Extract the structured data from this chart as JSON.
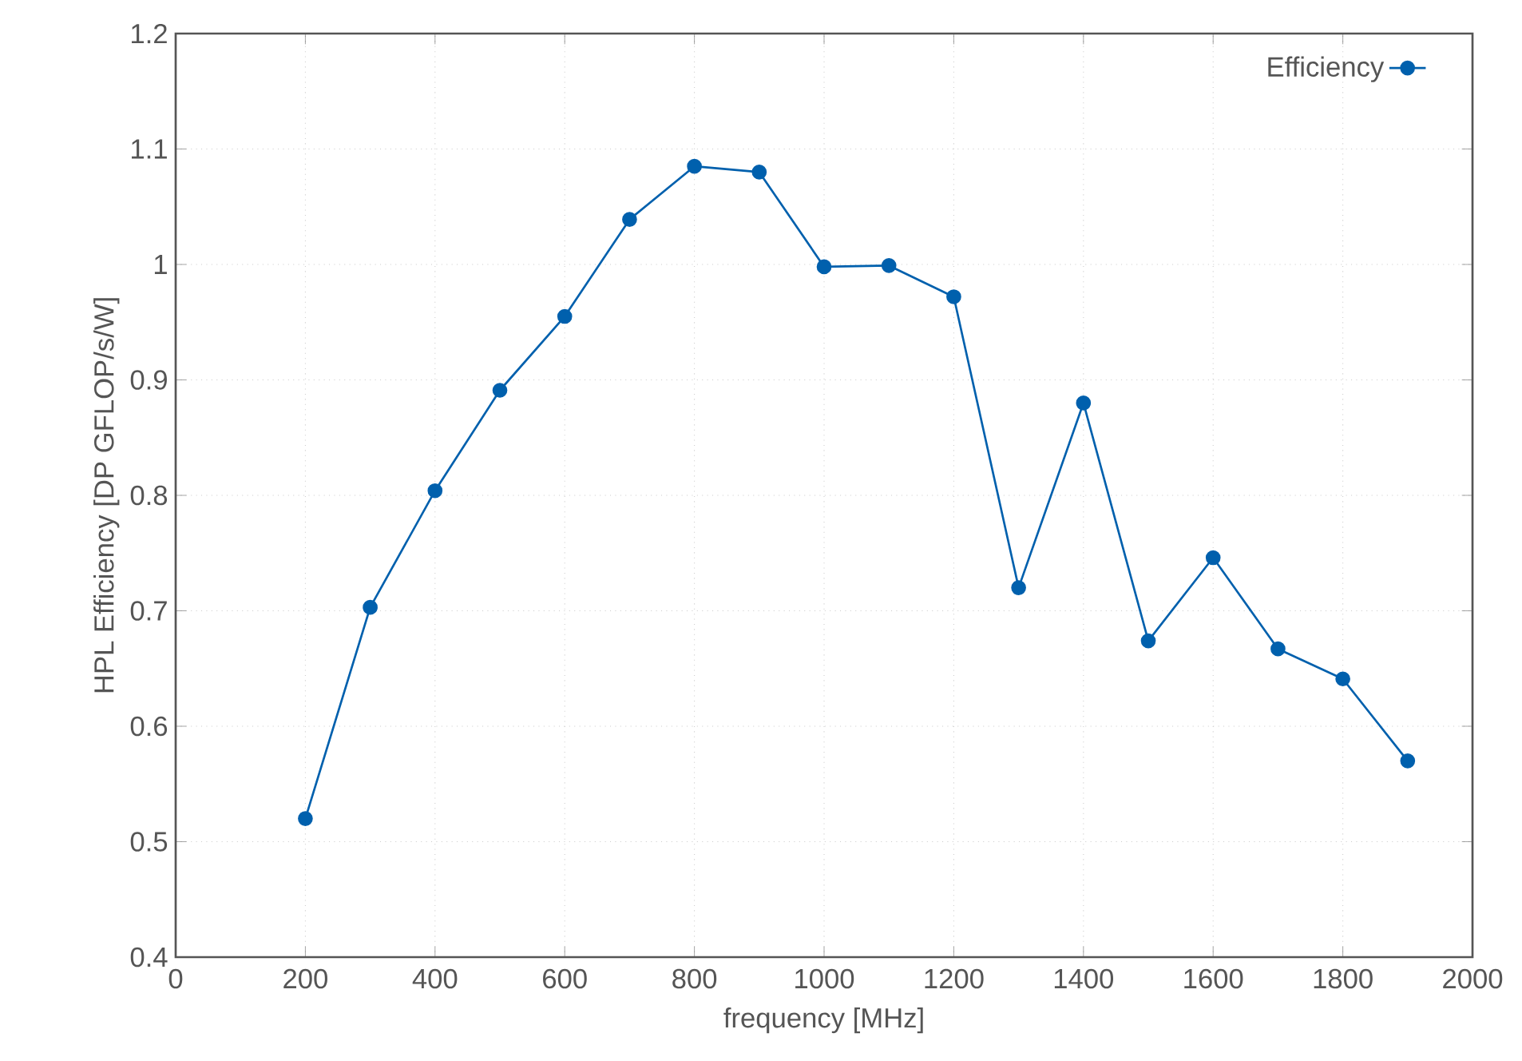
{
  "chart_data": {
    "type": "line",
    "xlabel": "frequency [MHz]",
    "ylabel": "HPL Efficiency [DP GFLOP/s/W]",
    "x": [
      200,
      300,
      400,
      500,
      600,
      700,
      800,
      900,
      1000,
      1100,
      1200,
      1300,
      1400,
      1500,
      1600,
      1700,
      1800,
      1900
    ],
    "series": [
      {
        "name": "Efficiency",
        "color": "#0060ad",
        "values": [
          0.52,
          0.703,
          0.804,
          0.891,
          0.955,
          1.039,
          1.085,
          1.08,
          0.998,
          0.999,
          0.972,
          0.72,
          0.88,
          0.674,
          0.746,
          0.667,
          0.641,
          0.57
        ]
      }
    ],
    "xlim": [
      0,
      2000
    ],
    "xticks": [
      0,
      200,
      400,
      600,
      800,
      1000,
      1200,
      1400,
      1600,
      1800,
      2000
    ],
    "ylim": [
      0.4,
      1.2
    ],
    "yticks": [
      0.4,
      0.5,
      0.6,
      0.7,
      0.8,
      0.9,
      1,
      1.1,
      1.2
    ],
    "grid": true,
    "legend": "top right",
    "marker": "circle",
    "line_style": "solid"
  }
}
